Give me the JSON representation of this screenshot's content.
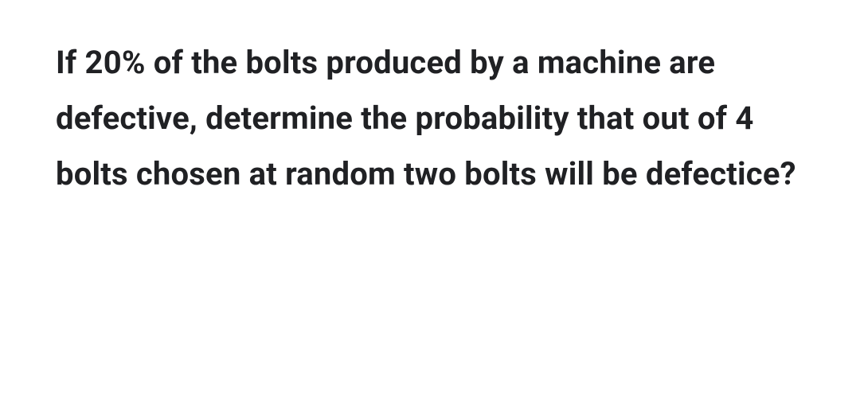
{
  "question": {
    "text": "If 20% of the bolts produced by a machine are defective, determine the probability that out of 4 bolts chosen at random two bolts will be defectice?",
    "font_size": 40,
    "font_weight": 700,
    "text_color": "#202124",
    "background_color": "#ffffff",
    "line_height": 1.75
  }
}
